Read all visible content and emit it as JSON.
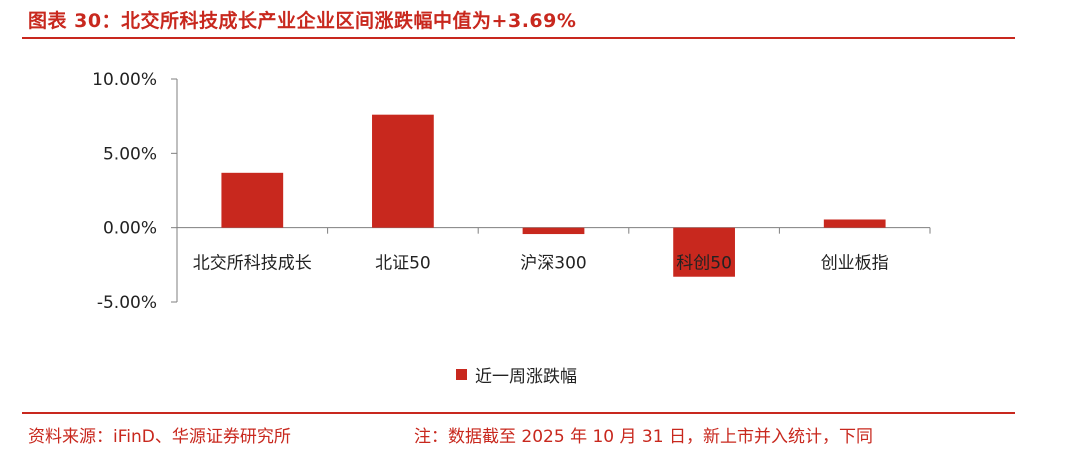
{
  "header": {
    "title": "图表 30：北交所科技成长产业企业区间涨跌幅中值为+3.69%"
  },
  "footer": {
    "source": "资料来源：iFinD、华源证券研究所",
    "note": "注：数据截至 2025 年 10 月 31 日，新上市并入统计，下同"
  },
  "colors": {
    "accent": "#c8281e",
    "bar": "#c8281e"
  },
  "chart_data": {
    "type": "bar",
    "title": "",
    "xlabel": "",
    "ylabel": "",
    "categories": [
      "北交所科技成长",
      "北证50",
      "沪深300",
      "科创50",
      "创业板指"
    ],
    "series": [
      {
        "name": "近一周涨跌幅",
        "values": [
          3.69,
          7.6,
          -0.43,
          -3.3,
          0.55
        ]
      }
    ],
    "ylim": [
      -5,
      10
    ],
    "yticks": [
      10,
      5,
      0,
      -5
    ],
    "ytick_labels": [
      "10.00%",
      "5.00%",
      "0.00%",
      "-5.00%"
    ],
    "grid": false,
    "legend": "bottom"
  }
}
